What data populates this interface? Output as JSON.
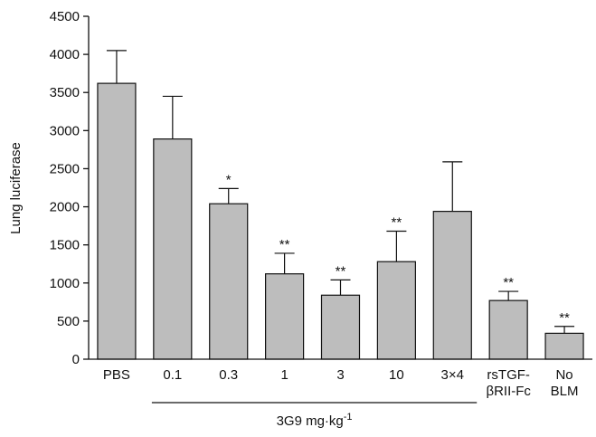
{
  "chart_data": {
    "type": "bar",
    "ylabel": "Lung luciferase",
    "ylim": [
      0,
      4500
    ],
    "yticks": [
      0,
      500,
      1000,
      1500,
      2000,
      2500,
      3000,
      3500,
      4000,
      4500
    ],
    "categories": [
      [
        "PBS"
      ],
      [
        "0.1"
      ],
      [
        "0.3"
      ],
      [
        "1"
      ],
      [
        "3"
      ],
      [
        "10"
      ],
      [
        "3×4"
      ],
      [
        "rsTGF-",
        "βRII-Fc"
      ],
      [
        "No",
        "BLM"
      ]
    ],
    "values": [
      3620,
      2890,
      2040,
      1120,
      840,
      1280,
      1940,
      770,
      340
    ],
    "error_upper": [
      4050,
      3450,
      2240,
      1390,
      1040,
      1680,
      2590,
      890,
      430
    ],
    "significance": [
      "",
      "",
      "*",
      "**",
      "**",
      "**",
      "",
      "**",
      "**"
    ],
    "group_label": {
      "text": "3G9 mg·kg",
      "superscript": "-1",
      "first_category": 1,
      "last_category": 6
    },
    "bar_color": "#bdbdbd",
    "grid": false
  }
}
